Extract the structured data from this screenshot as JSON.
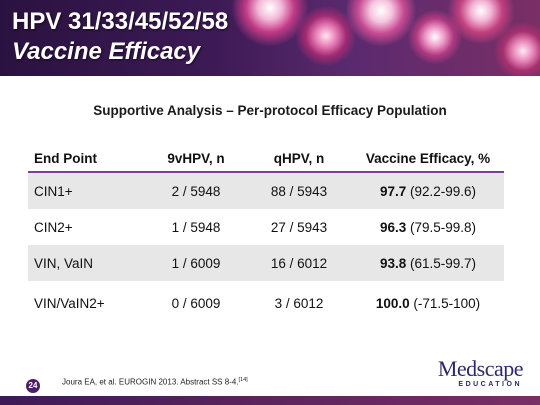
{
  "header": {
    "title_line1": "HPV 31/33/45/52/58",
    "title_line2": "Vaccine Efficacy"
  },
  "subtitle": "Supportive Analysis – Per-protocol Efficacy Population",
  "table": {
    "columns": [
      "End Point",
      "9vHPV, n",
      "qHPV, n",
      "Vaccine Efficacy, %"
    ],
    "rows": [
      {
        "end_point": "CIN1+",
        "vhpv9": "2 / 5948",
        "qhpv": "88 / 5943",
        "efficacy_value": "97.7",
        "efficacy_ci": " (92.2-99.6)"
      },
      {
        "end_point": "CIN2+",
        "vhpv9": "1 / 5948",
        "qhpv": "27 / 5943",
        "efficacy_value": "96.3",
        "efficacy_ci": " (79.5-99.8)"
      },
      {
        "end_point": "VIN, VaIN",
        "vhpv9": "1 / 6009",
        "qhpv": "16 / 6012",
        "efficacy_value": "93.8",
        "efficacy_ci": " (61.5-99.7)"
      },
      {
        "end_point": "VIN/VaIN2+",
        "vhpv9": "0 / 6009",
        "qhpv": "3 / 6012",
        "efficacy_value": "100.0",
        "efficacy_ci": " (-71.5-100)"
      }
    ]
  },
  "footer": {
    "page_number": "24",
    "citation": "Joura EA, et al. EUROGIN 2013. Abstract SS 8-4.",
    "citation_ref": "[14]",
    "logo_main": "Medscape",
    "logo_sub": "EDUCATION"
  },
  "colors": {
    "header_bg": "#3d1a55",
    "accent_rule": "#7b3f9a",
    "row_shade": "#e7e7e7",
    "logo": "#2d2a6b"
  },
  "icons": [
    "virus-particle-icon"
  ]
}
